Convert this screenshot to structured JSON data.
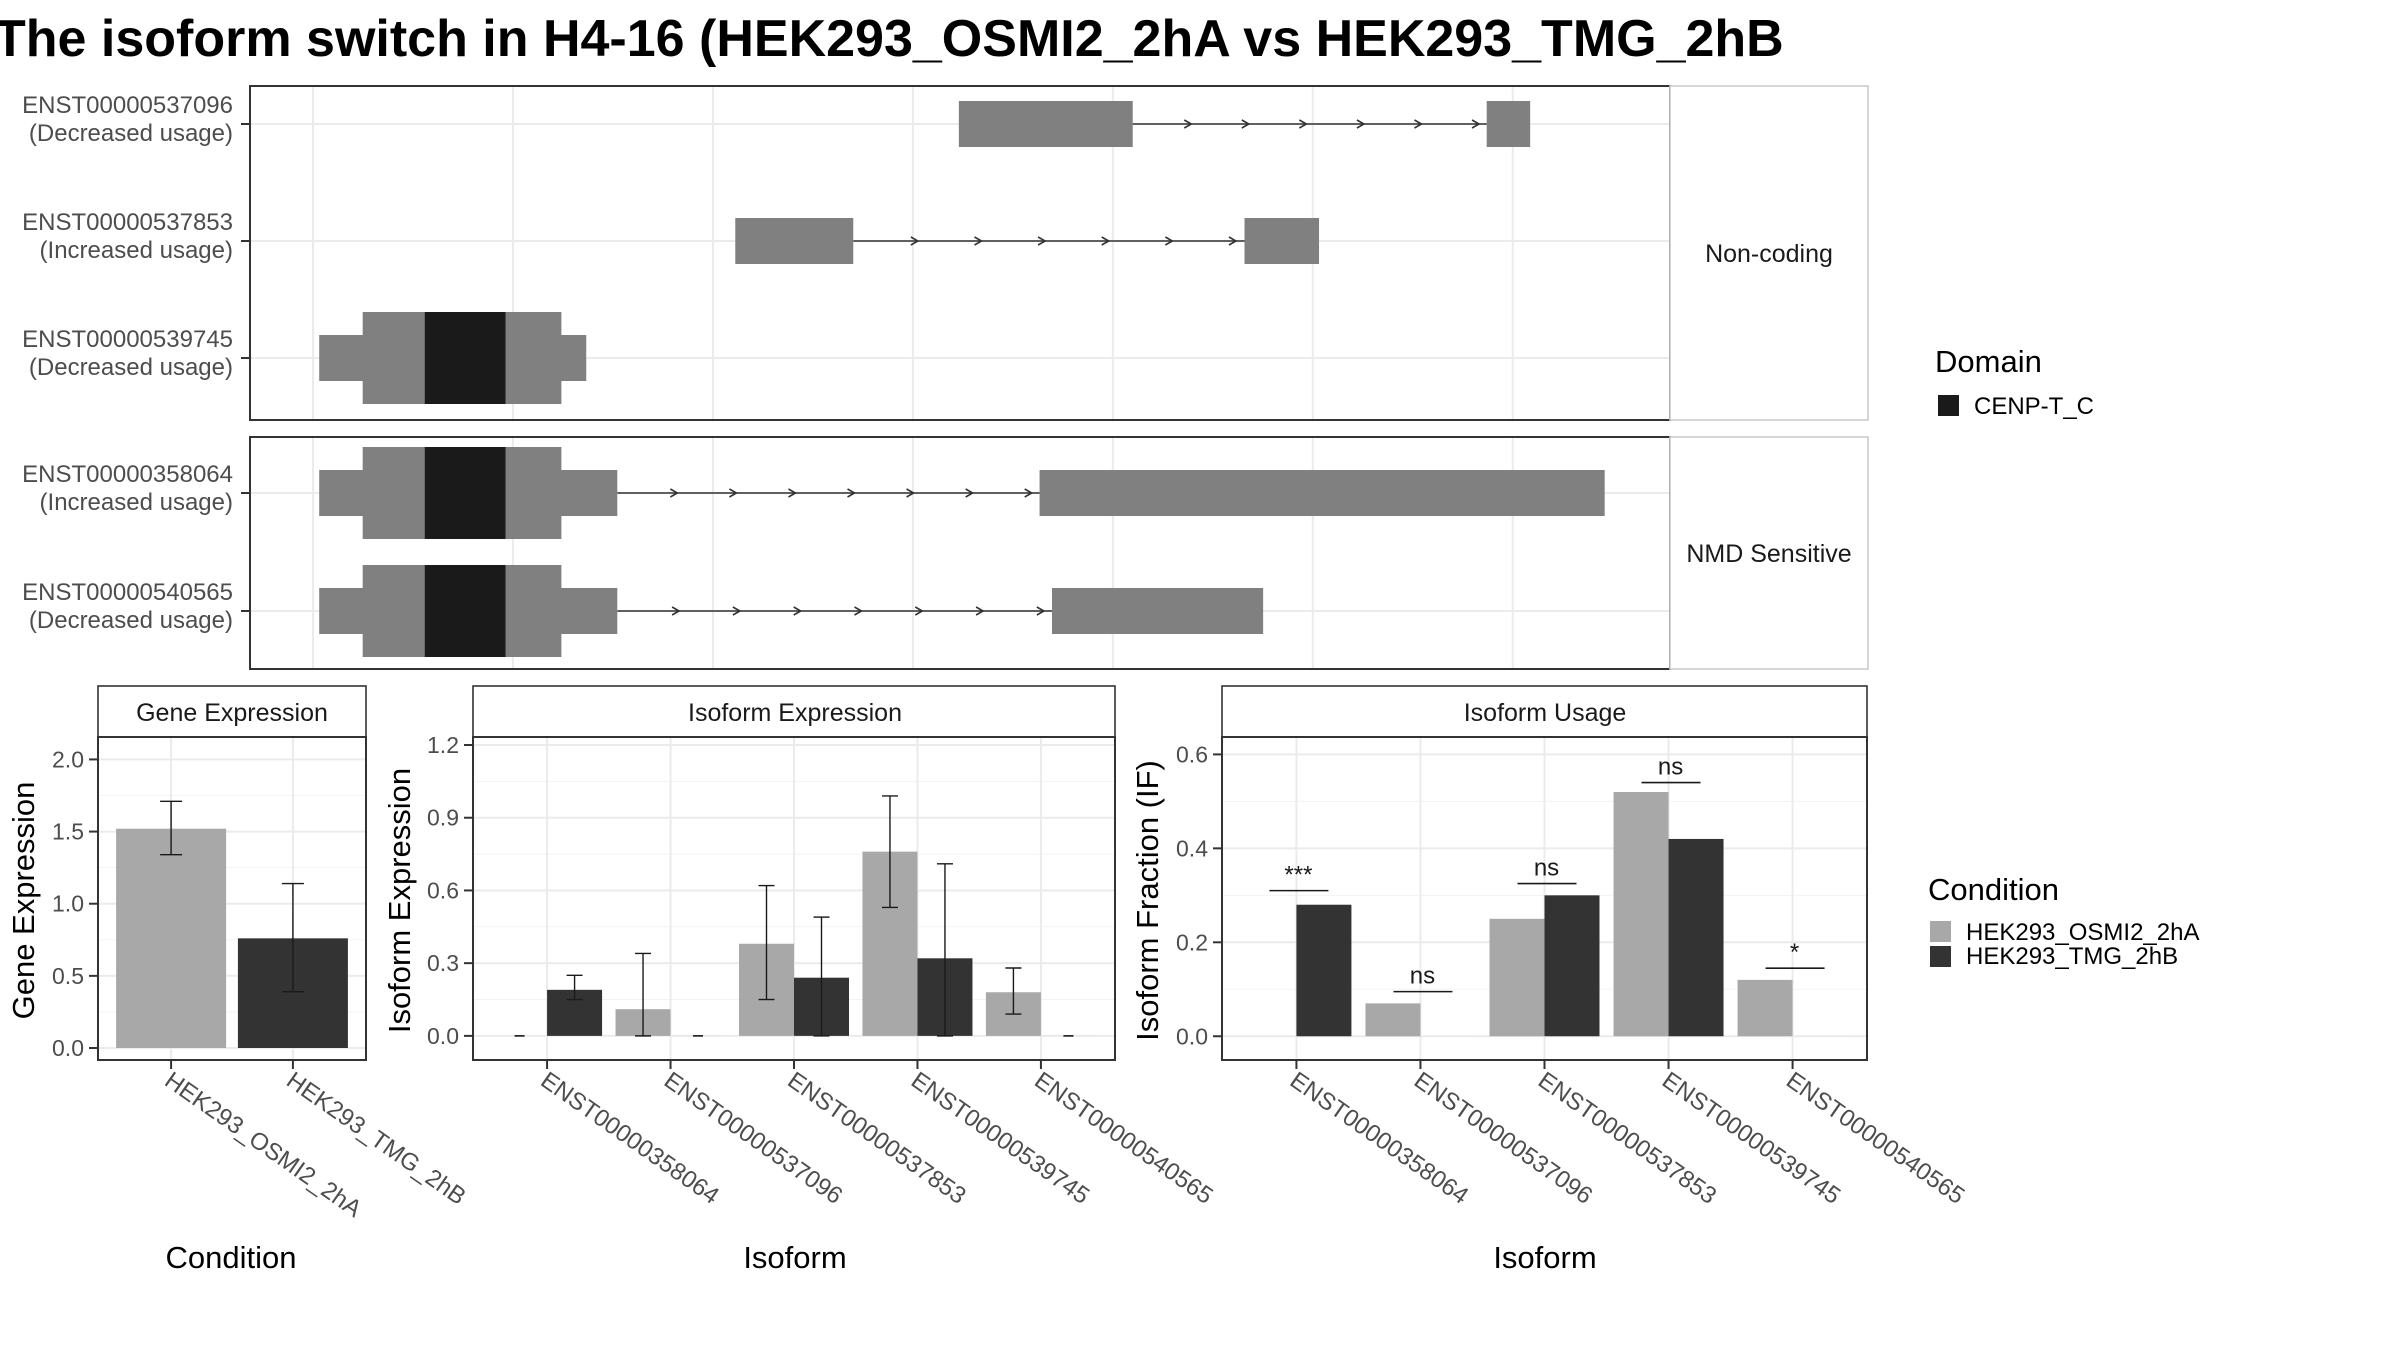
{
  "title": "The isoform switch in H4-16 (HEK293_OSMI2_2hA vs HEK293_TMG_2hB",
  "colors": {
    "exon": "#808080",
    "domain": "#1a1a1a",
    "cond_a": "#a8a8a8",
    "cond_b": "#333333"
  },
  "structure": {
    "groups": [
      {
        "label": "Non-coding",
        "isoforms": [
          {
            "id": "ENST00000537096",
            "usage": "(Decreased usage)",
            "exons": [
              [
                0.52,
                0.66
              ],
              [
                0.945,
                0.98
              ]
            ],
            "domains": []
          },
          {
            "id": "ENST00000537853",
            "usage": "(Increased usage)",
            "exons": [
              [
                0.34,
                0.435
              ],
              [
                0.75,
                0.81
              ]
            ],
            "domains": []
          },
          {
            "id": "ENST00000539745",
            "usage": "(Decreased usage)",
            "exons": [
              [
                0.005,
                0.22
              ]
            ],
            "domains": [
              [
                0.09,
                0.155
              ]
            ]
          }
        ]
      },
      {
        "label": "NMD Sensitive",
        "isoforms": [
          {
            "id": "ENST00000358064",
            "usage": "(Increased usage)",
            "exons": [
              [
                0.005,
                0.245
              ],
              [
                0.585,
                1.04
              ]
            ],
            "domains": [
              [
                0.09,
                0.155
              ]
            ]
          },
          {
            "id": "ENST00000540565",
            "usage": "(Decreased usage)",
            "exons": [
              [
                0.005,
                0.245
              ],
              [
                0.595,
                0.765
              ]
            ],
            "domains": [
              [
                0.09,
                0.155
              ]
            ]
          }
        ]
      }
    ]
  },
  "legend_domain": {
    "title": "Domain",
    "items": [
      "CENP-T_C"
    ]
  },
  "legend_condition": {
    "title": "Condition",
    "items": [
      "HEK293_OSMI2_2hA",
      "HEK293_TMG_2hB"
    ]
  },
  "chart_data": [
    {
      "type": "bar",
      "title": "Gene Expression",
      "xlabel": "Condition",
      "ylabel": "Gene Expression",
      "ylim": [
        0,
        2.1
      ],
      "yticks": [
        0.0,
        0.5,
        1.0,
        1.5,
        2.0
      ],
      "ytick_labels": [
        "0.0",
        "0.5",
        "1.0",
        "1.5",
        "2.0"
      ],
      "categories": [
        "HEK293_OSMI2_2hA",
        "HEK293_TMG_2hB"
      ],
      "values": [
        1.52,
        0.76
      ],
      "errors": [
        [
          1.34,
          1.71
        ],
        [
          0.39,
          1.14
        ]
      ]
    },
    {
      "type": "bar",
      "title": "Isoform Expression",
      "xlabel": "Isoform",
      "ylabel": "Isoform Expression",
      "ylim": [
        -0.05,
        1.2
      ],
      "yticks": [
        0.0,
        0.3,
        0.6,
        0.9,
        1.2
      ],
      "ytick_labels": [
        "0.0",
        "0.3",
        "0.6",
        "0.9",
        "1.2"
      ],
      "categories": [
        "ENST00000358064",
        "ENST00000537096",
        "ENST00000537853",
        "ENST00000539745",
        "ENST00000540565"
      ],
      "series": [
        {
          "name": "HEK293_OSMI2_2hA",
          "values": [
            0.0,
            0.11,
            0.38,
            0.76,
            0.18
          ],
          "errors": [
            null,
            [
              0.0,
              0.34
            ],
            [
              0.15,
              0.62
            ],
            [
              0.53,
              0.99
            ],
            [
              0.09,
              0.28
            ]
          ]
        },
        {
          "name": "HEK293_TMG_2hB",
          "values": [
            0.19,
            0.0,
            0.24,
            0.32,
            0.0
          ],
          "errors": [
            [
              0.15,
              0.25
            ],
            null,
            [
              0.0,
              0.49
            ],
            [
              0.0,
              0.71
            ],
            null
          ]
        }
      ]
    },
    {
      "type": "bar",
      "title": "Isoform Usage",
      "xlabel": "Isoform",
      "ylabel": "Isoform Fraction (IF)",
      "ylim": [
        -0.025,
        0.62
      ],
      "yticks": [
        0.0,
        0.2,
        0.4,
        0.6
      ],
      "ytick_labels": [
        "0.0",
        "0.2",
        "0.4",
        "0.6"
      ],
      "categories": [
        "ENST00000358064",
        "ENST00000537096",
        "ENST00000537853",
        "ENST00000539745",
        "ENST00000540565"
      ],
      "series": [
        {
          "name": "HEK293_OSMI2_2hA",
          "values": [
            0.0,
            0.07,
            0.25,
            0.52,
            0.12
          ]
        },
        {
          "name": "HEK293_TMG_2hB",
          "values": [
            0.28,
            0.0,
            0.3,
            0.42,
            0.0
          ]
        }
      ],
      "significance": [
        "***",
        "ns",
        "ns",
        "ns",
        "*"
      ],
      "significance_y": [
        0.31,
        0.095,
        0.325,
        0.54,
        0.145
      ]
    }
  ]
}
